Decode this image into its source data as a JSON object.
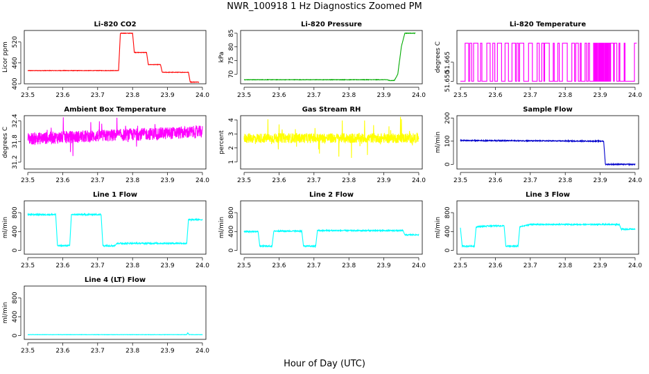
{
  "title": "NWR_100918  1 Hz Diagnostics Zoomed PM",
  "xaxis_label": "Hour of Day (UTC)",
  "chart_data": [
    {
      "type": "line",
      "title": "Li-820 CO2",
      "ylabel": "Licor ppm",
      "xlim": [
        23.49,
        24.01
      ],
      "ylim": [
        400,
        553
      ],
      "xticks": [
        "23.5",
        "23.6",
        "23.7",
        "23.8",
        "23.9",
        "24.0"
      ],
      "yticks": [
        "400",
        "460",
        "520"
      ],
      "color": "#ff0000",
      "noise": 0.6,
      "points": [
        [
          23.5,
          438
        ],
        [
          23.76,
          438
        ],
        [
          23.765,
          545
        ],
        [
          23.8,
          545
        ],
        [
          23.805,
          490
        ],
        [
          23.84,
          490
        ],
        [
          23.845,
          455
        ],
        [
          23.88,
          455
        ],
        [
          23.885,
          433
        ],
        [
          23.96,
          433
        ],
        [
          23.965,
          405
        ],
        [
          23.99,
          405
        ]
      ]
    },
    {
      "type": "line",
      "title": "Li-820 Pressure",
      "ylabel": "kPa",
      "xlim": [
        23.49,
        24.01
      ],
      "ylim": [
        66.5,
        86
      ],
      "xticks": [
        "23.5",
        "23.6",
        "23.7",
        "23.8",
        "23.9",
        "24.0"
      ],
      "yticks": [
        "70",
        "75",
        "80",
        "85"
      ],
      "color": "#00aa00",
      "noise": 0.08,
      "points": [
        [
          23.5,
          68
        ],
        [
          23.91,
          68
        ],
        [
          23.915,
          67.7
        ],
        [
          23.93,
          67.7
        ],
        [
          23.94,
          70
        ],
        [
          23.95,
          80
        ],
        [
          23.96,
          85
        ],
        [
          23.99,
          85
        ]
      ]
    },
    {
      "type": "binary",
      "title": "Li-820 Temperature",
      "ylabel": "degrees C",
      "xlim": [
        23.49,
        24.01
      ],
      "ylim": [
        51.648,
        51.69
      ],
      "xticks": [
        "23.5",
        "23.6",
        "23.7",
        "23.8",
        "23.9",
        "24.0"
      ],
      "yticks": [
        "51.650",
        "51.665"
      ],
      "color": "#ff00ff",
      "levels": [
        51.65,
        51.68
      ]
    },
    {
      "type": "noise",
      "title": "Ambient Box Temperature",
      "ylabel": "degrees C",
      "xlim": [
        23.49,
        24.01
      ],
      "ylim": [
        31.0,
        32.55
      ],
      "xticks": [
        "23.5",
        "23.6",
        "23.7",
        "23.8",
        "23.9",
        "24.0"
      ],
      "yticks": [
        "31.2",
        "31.8",
        "32.4"
      ],
      "color": "#ff00ff",
      "base": 31.88,
      "trend": 0.2,
      "amp": 0.18,
      "spike": 0.5
    },
    {
      "type": "noise",
      "title": "Gas Stream RH",
      "ylabel": "percent",
      "xlim": [
        23.49,
        24.01
      ],
      "ylim": [
        0.5,
        4.3
      ],
      "xticks": [
        "23.5",
        "23.6",
        "23.7",
        "23.8",
        "23.9",
        "24.0"
      ],
      "yticks": [
        "1",
        "2",
        "3",
        "4"
      ],
      "color": "#ffff00",
      "base": 2.7,
      "trend": 0.0,
      "amp": 0.35,
      "spike": 1.4
    },
    {
      "type": "line",
      "title": "Sample Flow",
      "ylabel": "ml/min",
      "xlim": [
        23.49,
        24.01
      ],
      "ylim": [
        -20,
        210
      ],
      "xticks": [
        "23.5",
        "23.6",
        "23.7",
        "23.8",
        "23.9",
        "24.0"
      ],
      "yticks": [
        "0",
        "100",
        "200"
      ],
      "color": "#0000cc",
      "noise": 2,
      "points": [
        [
          23.5,
          103
        ],
        [
          23.91,
          100
        ],
        [
          23.915,
          0
        ],
        [
          24.0,
          0
        ]
      ]
    },
    {
      "type": "line",
      "title": "Line 1 Flow",
      "ylabel": "ml/min",
      "xlim": [
        23.49,
        24.01
      ],
      "ylim": [
        -80,
        1050
      ],
      "xticks": [
        "23.5",
        "23.6",
        "23.7",
        "23.8",
        "23.9",
        "24.0"
      ],
      "yticks": [
        "0",
        "400",
        "800"
      ],
      "color": "#00ffff",
      "noise": 15,
      "points": [
        [
          23.5,
          760
        ],
        [
          23.58,
          760
        ],
        [
          23.585,
          100
        ],
        [
          23.62,
          100
        ],
        [
          23.625,
          760
        ],
        [
          23.71,
          760
        ],
        [
          23.715,
          100
        ],
        [
          23.75,
          100
        ],
        [
          23.755,
          150
        ],
        [
          23.955,
          150
        ],
        [
          23.96,
          650
        ],
        [
          24.0,
          650
        ]
      ]
    },
    {
      "type": "line",
      "title": "Line 2 Flow",
      "ylabel": "ml/min",
      "xlim": [
        23.49,
        24.01
      ],
      "ylim": [
        -80,
        1050
      ],
      "xticks": [
        "23.5",
        "23.6",
        "23.7",
        "23.8",
        "23.9",
        "24.0"
      ],
      "yticks": [
        "0",
        "400",
        "800"
      ],
      "color": "#00ffff",
      "noise": 12,
      "points": [
        [
          23.5,
          400
        ],
        [
          23.54,
          400
        ],
        [
          23.545,
          90
        ],
        [
          23.58,
          90
        ],
        [
          23.585,
          410
        ],
        [
          23.665,
          410
        ],
        [
          23.67,
          90
        ],
        [
          23.705,
          90
        ],
        [
          23.71,
          420
        ],
        [
          23.955,
          420
        ],
        [
          23.96,
          330
        ],
        [
          24.0,
          330
        ]
      ]
    },
    {
      "type": "line",
      "title": "Line 3 Flow",
      "ylabel": "ml/min",
      "xlim": [
        23.49,
        24.01
      ],
      "ylim": [
        -80,
        1050
      ],
      "xticks": [
        "23.5",
        "23.6",
        "23.7",
        "23.8",
        "23.9",
        "24.0"
      ],
      "yticks": [
        "0",
        "400",
        "800"
      ],
      "color": "#00ffff",
      "noise": 12,
      "points": [
        [
          23.5,
          480
        ],
        [
          23.505,
          90
        ],
        [
          23.54,
          90
        ],
        [
          23.545,
          500
        ],
        [
          23.585,
          520
        ],
        [
          23.625,
          520
        ],
        [
          23.63,
          90
        ],
        [
          23.665,
          90
        ],
        [
          23.67,
          500
        ],
        [
          23.7,
          550
        ],
        [
          23.955,
          550
        ],
        [
          23.96,
          450
        ],
        [
          24.0,
          450
        ]
      ]
    },
    {
      "type": "line",
      "title": "Line 4 (LT) Flow",
      "ylabel": "ml/min",
      "xlim": [
        23.49,
        24.01
      ],
      "ylim": [
        -80,
        1050
      ],
      "xticks": [
        "23.5",
        "23.6",
        "23.7",
        "23.8",
        "23.9",
        "24.0"
      ],
      "yticks": [
        "0",
        "400",
        "800"
      ],
      "color": "#00ffff",
      "noise": 3,
      "points": [
        [
          23.5,
          20
        ],
        [
          23.955,
          20
        ],
        [
          23.958,
          60
        ],
        [
          23.962,
          20
        ],
        [
          24.0,
          20
        ]
      ]
    }
  ]
}
